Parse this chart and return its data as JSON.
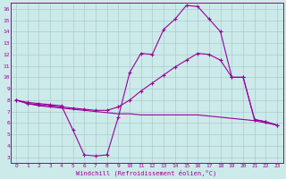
{
  "bg_color": "#cceaea",
  "line_color": "#990099",
  "xlabel": "Windchill (Refroidissement éolien,°C)",
  "xlim": [
    -0.5,
    23.5
  ],
  "ylim": [
    2.5,
    16.5
  ],
  "xticks": [
    0,
    1,
    2,
    3,
    4,
    5,
    6,
    7,
    8,
    9,
    10,
    11,
    12,
    13,
    14,
    15,
    16,
    17,
    18,
    19,
    20,
    21,
    22,
    23
  ],
  "yticks": [
    3,
    4,
    5,
    6,
    7,
    8,
    9,
    10,
    11,
    12,
    13,
    14,
    15,
    16
  ],
  "grid_color": "#aacccc",
  "line1_x": [
    0,
    1,
    2,
    3,
    4,
    5,
    6,
    7,
    8,
    9,
    10,
    11,
    12,
    13,
    14,
    15,
    16,
    17,
    18,
    19,
    20,
    21,
    22,
    23
  ],
  "line1_y": [
    8.0,
    7.8,
    7.7,
    7.6,
    7.5,
    5.4,
    3.2,
    3.1,
    3.2,
    6.5,
    10.4,
    12.1,
    12.0,
    14.2,
    15.1,
    16.3,
    16.2,
    15.1,
    14.0,
    10.0,
    10.0,
    6.3,
    6.1,
    5.8
  ],
  "line2_x": [
    0,
    1,
    2,
    3,
    4,
    5,
    6,
    7,
    8,
    9,
    10,
    11,
    12,
    13,
    14,
    15,
    16,
    17,
    18,
    19,
    20,
    21,
    22,
    23
  ],
  "line2_y": [
    8.0,
    7.7,
    7.6,
    7.5,
    7.4,
    7.3,
    7.2,
    7.1,
    7.1,
    7.4,
    8.0,
    8.8,
    9.5,
    10.2,
    10.9,
    11.5,
    12.1,
    12.0,
    11.5,
    10.0,
    10.0,
    6.3,
    6.1,
    5.8
  ],
  "line3_x": [
    0,
    1,
    2,
    3,
    4,
    5,
    6,
    7,
    8,
    9,
    10,
    11,
    12,
    13,
    14,
    15,
    16,
    17,
    18,
    19,
    20,
    21,
    22,
    23
  ],
  "line3_y": [
    8.0,
    7.7,
    7.5,
    7.4,
    7.3,
    7.2,
    7.1,
    7.0,
    6.9,
    6.8,
    6.8,
    6.7,
    6.7,
    6.7,
    6.7,
    6.7,
    6.7,
    6.6,
    6.5,
    6.4,
    6.3,
    6.2,
    6.0,
    5.8
  ]
}
